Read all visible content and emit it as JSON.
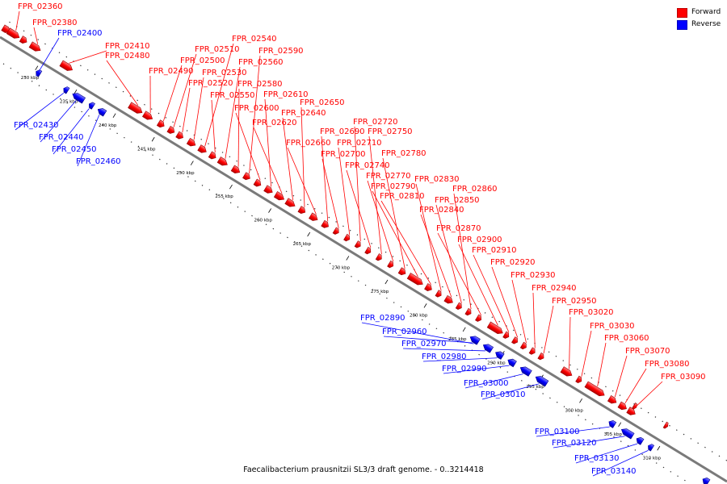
{
  "legend": {
    "forward_label": "Forward",
    "reverse_label": "Reverse",
    "forward_color": "#ff0000",
    "reverse_color": "#0000ff"
  },
  "caption": "Faecalibacterium prausnitzii SL3/3 draft genome. - 0..3214418",
  "ticks": [
    {
      "kbp": 230,
      "label": "230 kbp"
    },
    {
      "kbp": 235,
      "label": "235 kbp"
    },
    {
      "kbp": 240,
      "label": "240 kbp"
    },
    {
      "kbp": 245,
      "label": "245 kbp"
    },
    {
      "kbp": 250,
      "label": "250 kbp"
    },
    {
      "kbp": 255,
      "label": "255 kbp"
    },
    {
      "kbp": 260,
      "label": "260 kbp"
    },
    {
      "kbp": 265,
      "label": "265 kbp"
    },
    {
      "kbp": 270,
      "label": "270 kbp"
    },
    {
      "kbp": 275,
      "label": "275 kbp"
    },
    {
      "kbp": 280,
      "label": "280 kbp"
    },
    {
      "kbp": 285,
      "label": "285 kbp"
    },
    {
      "kbp": 290,
      "label": "290 kbp"
    },
    {
      "kbp": 295,
      "label": "295 kbp"
    },
    {
      "kbp": 300,
      "label": "300 kbp"
    },
    {
      "kbp": 305,
      "label": "305 kbp"
    },
    {
      "kbp": 310,
      "label": "310 kbp"
    }
  ],
  "genes": [
    {
      "id": "FPR_02360",
      "strand": "forward"
    },
    {
      "id": "FPR_02380",
      "strand": "forward"
    },
    {
      "id": "FPR_02400",
      "strand": "reverse"
    },
    {
      "id": "FPR_02410",
      "strand": "forward"
    },
    {
      "id": "FPR_02430",
      "strand": "reverse"
    },
    {
      "id": "FPR_02440",
      "strand": "reverse"
    },
    {
      "id": "FPR_02450",
      "strand": "reverse"
    },
    {
      "id": "FPR_02460",
      "strand": "reverse"
    },
    {
      "id": "FPR_02480",
      "strand": "forward"
    },
    {
      "id": "FPR_02490",
      "strand": "forward"
    },
    {
      "id": "FPR_02500",
      "strand": "forward"
    },
    {
      "id": "FPR_02510",
      "strand": "forward"
    },
    {
      "id": "FPR_02520",
      "strand": "forward"
    },
    {
      "id": "FPR_02530",
      "strand": "forward"
    },
    {
      "id": "FPR_02540",
      "strand": "forward"
    },
    {
      "id": "FPR_02550",
      "strand": "forward"
    },
    {
      "id": "FPR_02560",
      "strand": "forward"
    },
    {
      "id": "FPR_02580",
      "strand": "forward"
    },
    {
      "id": "FPR_02590",
      "strand": "forward"
    },
    {
      "id": "FPR_02600",
      "strand": "forward"
    },
    {
      "id": "FPR_02610",
      "strand": "forward"
    },
    {
      "id": "FPR_02620",
      "strand": "forward"
    },
    {
      "id": "FPR_02640",
      "strand": "forward"
    },
    {
      "id": "FPR_02650",
      "strand": "forward"
    },
    {
      "id": "FPR_02660",
      "strand": "forward"
    },
    {
      "id": "FPR_02690",
      "strand": "forward"
    },
    {
      "id": "FPR_02700",
      "strand": "forward"
    },
    {
      "id": "FPR_02710",
      "strand": "forward"
    },
    {
      "id": "FPR_02720",
      "strand": "forward"
    },
    {
      "id": "FPR_02740",
      "strand": "forward"
    },
    {
      "id": "FPR_02750",
      "strand": "forward"
    },
    {
      "id": "FPR_02770",
      "strand": "forward"
    },
    {
      "id": "FPR_02780",
      "strand": "forward"
    },
    {
      "id": "FPR_02790",
      "strand": "forward"
    },
    {
      "id": "FPR_02810",
      "strand": "forward"
    },
    {
      "id": "FPR_02830",
      "strand": "forward"
    },
    {
      "id": "FPR_02840",
      "strand": "forward"
    },
    {
      "id": "FPR_02850",
      "strand": "forward"
    },
    {
      "id": "FPR_02860",
      "strand": "forward"
    },
    {
      "id": "FPR_02870",
      "strand": "forward"
    },
    {
      "id": "FPR_02890",
      "strand": "reverse"
    },
    {
      "id": "FPR_02900",
      "strand": "forward"
    },
    {
      "id": "FPR_02910",
      "strand": "forward"
    },
    {
      "id": "FPR_02920",
      "strand": "forward"
    },
    {
      "id": "FPR_02930",
      "strand": "forward"
    },
    {
      "id": "FPR_02940",
      "strand": "forward"
    },
    {
      "id": "FPR_02950",
      "strand": "forward"
    },
    {
      "id": "FPR_02960",
      "strand": "reverse"
    },
    {
      "id": "FPR_02970",
      "strand": "reverse"
    },
    {
      "id": "FPR_02980",
      "strand": "reverse"
    },
    {
      "id": "FPR_02990",
      "strand": "reverse"
    },
    {
      "id": "FPR_03000",
      "strand": "reverse"
    },
    {
      "id": "FPR_03010",
      "strand": "reverse"
    },
    {
      "id": "FPR_03020",
      "strand": "forward"
    },
    {
      "id": "FPR_03030",
      "strand": "forward"
    },
    {
      "id": "FPR_03060",
      "strand": "forward"
    },
    {
      "id": "FPR_03070",
      "strand": "forward"
    },
    {
      "id": "FPR_03080",
      "strand": "forward"
    },
    {
      "id": "FPR_03090",
      "strand": "forward"
    },
    {
      "id": "FPR_03100",
      "strand": "reverse"
    },
    {
      "id": "FPR_03120",
      "strand": "reverse"
    },
    {
      "id": "FPR_03130",
      "strand": "reverse"
    },
    {
      "id": "FPR_03140",
      "strand": "reverse"
    }
  ]
}
